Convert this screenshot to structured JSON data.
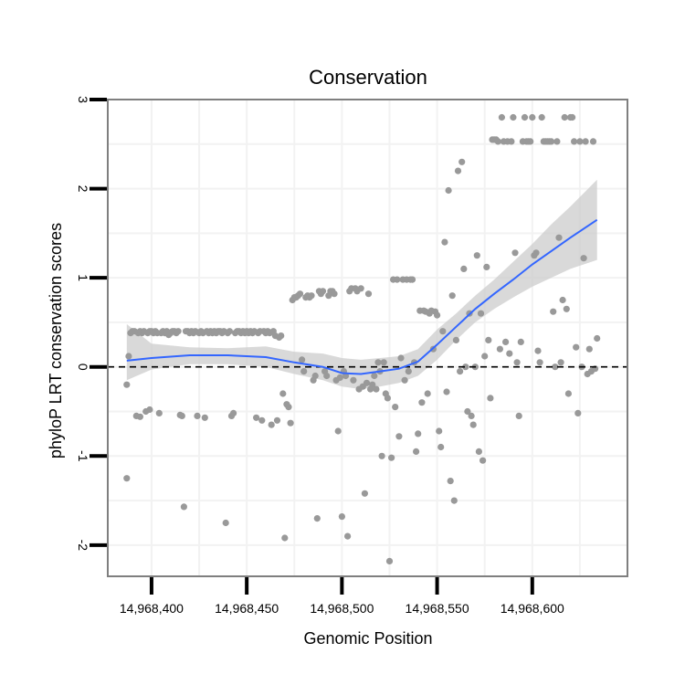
{
  "chart_data": {
    "type": "scatter",
    "title": "Conservation",
    "xlabel": "Genomic Position",
    "ylabel": "phyloP LRT conservation scores",
    "xlim": [
      14968377,
      14968650
    ],
    "ylim": [
      -2.35,
      3.0
    ],
    "x_ticks": [
      14968400,
      14968450,
      14968500,
      14968550,
      14968600
    ],
    "x_tick_labels": [
      "14,968,400",
      "14,968,450",
      "14,968,500",
      "14,968,550",
      "14,968,600"
    ],
    "y_ticks": [
      -2,
      -1,
      0,
      1,
      2,
      3
    ],
    "y_tick_labels": [
      "-2",
      "-1",
      "0",
      "1",
      "2",
      "3"
    ],
    "reference_line": {
      "y": 0,
      "style": "dashed"
    },
    "colors": {
      "points": "#999999",
      "smooth_line": "#3366ff",
      "ribbon": "#cccccc",
      "panel_border": "#7f7f7f",
      "grid": "#f2f2f2"
    },
    "points": [
      [
        14968387,
        -1.25
      ],
      [
        14968387,
        -0.2
      ],
      [
        14968388,
        0.12
      ],
      [
        14968389,
        0.38
      ],
      [
        14968390,
        0.4
      ],
      [
        14968391,
        0.4
      ],
      [
        14968392,
        -0.55
      ],
      [
        14968393,
        0.38
      ],
      [
        14968394,
        0.4
      ],
      [
        14968394,
        -0.56
      ],
      [
        14968395,
        0.38
      ],
      [
        14968396,
        0.4
      ],
      [
        14968397,
        -0.5
      ],
      [
        14968398,
        0.38
      ],
      [
        14968399,
        0.4
      ],
      [
        14968399,
        -0.48
      ],
      [
        14968400,
        0.4
      ],
      [
        14968401,
        0.38
      ],
      [
        14968402,
        0.4
      ],
      [
        14968403,
        0.38
      ],
      [
        14968404,
        -0.52
      ],
      [
        14968405,
        0.38
      ],
      [
        14968406,
        0.4
      ],
      [
        14968407,
        0.38
      ],
      [
        14968408,
        0.4
      ],
      [
        14968409,
        0.36
      ],
      [
        14968410,
        0.38
      ],
      [
        14968411,
        0.4
      ],
      [
        14968412,
        0.4
      ],
      [
        14968413,
        0.38
      ],
      [
        14968414,
        0.4
      ],
      [
        14968415,
        -0.54
      ],
      [
        14968416,
        -0.55
      ],
      [
        14968417,
        -1.57
      ],
      [
        14968418,
        0.4
      ],
      [
        14968419,
        0.4
      ],
      [
        14968420,
        0.38
      ],
      [
        14968421,
        0.4
      ],
      [
        14968422,
        0.38
      ],
      [
        14968423,
        0.4
      ],
      [
        14968424,
        -0.55
      ],
      [
        14968425,
        0.38
      ],
      [
        14968426,
        0.4
      ],
      [
        14968427,
        0.38
      ],
      [
        14968428,
        -0.57
      ],
      [
        14968429,
        0.4
      ],
      [
        14968430,
        0.38
      ],
      [
        14968431,
        0.4
      ],
      [
        14968432,
        0.38
      ],
      [
        14968433,
        0.4
      ],
      [
        14968434,
        0.38
      ],
      [
        14968435,
        0.4
      ],
      [
        14968436,
        0.4
      ],
      [
        14968437,
        0.38
      ],
      [
        14968438,
        0.4
      ],
      [
        14968439,
        -1.75
      ],
      [
        14968440,
        0.38
      ],
      [
        14968441,
        0.4
      ],
      [
        14968442,
        -0.55
      ],
      [
        14968443,
        -0.52
      ],
      [
        14968444,
        0.38
      ],
      [
        14968445,
        0.4
      ],
      [
        14968446,
        0.4
      ],
      [
        14968447,
        0.38
      ],
      [
        14968448,
        0.4
      ],
      [
        14968449,
        0.38
      ],
      [
        14968450,
        0.4
      ],
      [
        14968451,
        0.38
      ],
      [
        14968452,
        0.4
      ],
      [
        14968453,
        0.38
      ],
      [
        14968454,
        0.4
      ],
      [
        14968455,
        -0.57
      ],
      [
        14968456,
        0.38
      ],
      [
        14968457,
        0.4
      ],
      [
        14968458,
        -0.6
      ],
      [
        14968459,
        0.4
      ],
      [
        14968460,
        0.38
      ],
      [
        14968461,
        0.4
      ],
      [
        14968462,
        0.38
      ],
      [
        14968463,
        -0.65
      ],
      [
        14968464,
        0.4
      ],
      [
        14968465,
        0.35
      ],
      [
        14968466,
        -0.6
      ],
      [
        14968467,
        0.33
      ],
      [
        14968468,
        0.35
      ],
      [
        14968469,
        -0.3
      ],
      [
        14968470,
        -1.92
      ],
      [
        14968471,
        -0.42
      ],
      [
        14968472,
        -0.45
      ],
      [
        14968473,
        -0.63
      ],
      [
        14968474,
        0.75
      ],
      [
        14968475,
        0.78
      ],
      [
        14968476,
        0.78
      ],
      [
        14968477,
        0.8
      ],
      [
        14968478,
        0.82
      ],
      [
        14968479,
        0.08
      ],
      [
        14968480,
        -0.05
      ],
      [
        14968481,
        0.78
      ],
      [
        14968482,
        0.8
      ],
      [
        14968483,
        0.78
      ],
      [
        14968484,
        0.8
      ],
      [
        14968485,
        -0.15
      ],
      [
        14968486,
        -0.1
      ],
      [
        14968487,
        -1.7
      ],
      [
        14968488,
        0.85
      ],
      [
        14968489,
        0.82
      ],
      [
        14968490,
        0.85
      ],
      [
        14968491,
        -0.05
      ],
      [
        14968492,
        -0.1
      ],
      [
        14968493,
        0.8
      ],
      [
        14968494,
        0.85
      ],
      [
        14968495,
        0.85
      ],
      [
        14968496,
        0.82
      ],
      [
        14968497,
        -0.15
      ],
      [
        14968498,
        -0.72
      ],
      [
        14968499,
        -0.12
      ],
      [
        14968500,
        -1.68
      ],
      [
        14968501,
        -0.05
      ],
      [
        14968502,
        -0.1
      ],
      [
        14968503,
        -1.9
      ],
      [
        14968504,
        0.85
      ],
      [
        14968505,
        0.88
      ],
      [
        14968506,
        -0.15
      ],
      [
        14968507,
        0.88
      ],
      [
        14968508,
        0.85
      ],
      [
        14968509,
        -0.25
      ],
      [
        14968510,
        0.88
      ],
      [
        14968511,
        -0.22
      ],
      [
        14968512,
        -1.42
      ],
      [
        14968513,
        -0.18
      ],
      [
        14968514,
        0.82
      ],
      [
        14968515,
        -0.25
      ],
      [
        14968516,
        -0.2
      ],
      [
        14968517,
        -0.1
      ],
      [
        14968518,
        -0.25
      ],
      [
        14968519,
        0.05
      ],
      [
        14968520,
        -0.05
      ],
      [
        14968521,
        -1.0
      ],
      [
        14968522,
        0.05
      ],
      [
        14968523,
        -0.3
      ],
      [
        14968524,
        -0.35
      ],
      [
        14968525,
        -2.18
      ],
      [
        14968526,
        -1.02
      ],
      [
        14968527,
        0.98
      ],
      [
        14968528,
        -0.45
      ],
      [
        14968529,
        0.98
      ],
      [
        14968530,
        -0.78
      ],
      [
        14968531,
        0.1
      ],
      [
        14968532,
        0.98
      ],
      [
        14968533,
        -0.15
      ],
      [
        14968534,
        0.98
      ],
      [
        14968535,
        -0.05
      ],
      [
        14968536,
        0.98
      ],
      [
        14968537,
        0.98
      ],
      [
        14968538,
        0.05
      ],
      [
        14968539,
        -0.95
      ],
      [
        14968540,
        -0.75
      ],
      [
        14968541,
        0.63
      ],
      [
        14968542,
        -0.4
      ],
      [
        14968543,
        0.63
      ],
      [
        14968544,
        0.62
      ],
      [
        14968545,
        -0.3
      ],
      [
        14968546,
        0.6
      ],
      [
        14968547,
        0.63
      ],
      [
        14968548,
        0.2
      ],
      [
        14968549,
        0.62
      ],
      [
        14968550,
        0.58
      ],
      [
        14968551,
        -0.72
      ],
      [
        14968552,
        -0.9
      ],
      [
        14968553,
        0.4
      ],
      [
        14968554,
        1.4
      ],
      [
        14968555,
        -0.28
      ],
      [
        14968556,
        1.98
      ],
      [
        14968557,
        -1.28
      ],
      [
        14968558,
        0.8
      ],
      [
        14968559,
        -1.5
      ],
      [
        14968560,
        0.3
      ],
      [
        14968561,
        2.2
      ],
      [
        14968562,
        -0.05
      ],
      [
        14968563,
        2.3
      ],
      [
        14968564,
        1.1
      ],
      [
        14968565,
        0.0
      ],
      [
        14968566,
        -0.5
      ],
      [
        14968567,
        0.6
      ],
      [
        14968568,
        -0.55
      ],
      [
        14968569,
        -0.65
      ],
      [
        14968570,
        0.0
      ],
      [
        14968571,
        1.25
      ],
      [
        14968572,
        -0.95
      ],
      [
        14968573,
        0.6
      ],
      [
        14968574,
        -1.05
      ],
      [
        14968575,
        0.12
      ],
      [
        14968576,
        1.12
      ],
      [
        14968577,
        0.3
      ],
      [
        14968578,
        -0.35
      ],
      [
        14968579,
        2.55
      ],
      [
        14968580,
        2.55
      ],
      [
        14968581,
        2.55
      ],
      [
        14968582,
        2.53
      ],
      [
        14968583,
        0.2
      ],
      [
        14968584,
        2.8
      ],
      [
        14968585,
        2.53
      ],
      [
        14968586,
        0.28
      ],
      [
        14968587,
        2.53
      ],
      [
        14968588,
        0.15
      ],
      [
        14968589,
        2.53
      ],
      [
        14968590,
        2.8
      ],
      [
        14968591,
        1.28
      ],
      [
        14968592,
        0.05
      ],
      [
        14968593,
        -0.55
      ],
      [
        14968594,
        0.28
      ],
      [
        14968595,
        2.53
      ],
      [
        14968596,
        2.8
      ],
      [
        14968597,
        2.53
      ],
      [
        14968598,
        2.53
      ],
      [
        14968599,
        2.53
      ],
      [
        14968600,
        2.8
      ],
      [
        14968601,
        1.25
      ],
      [
        14968602,
        1.28
      ],
      [
        14968603,
        0.18
      ],
      [
        14968604,
        0.05
      ],
      [
        14968605,
        2.8
      ],
      [
        14968606,
        2.53
      ],
      [
        14968607,
        2.53
      ],
      [
        14968608,
        2.53
      ],
      [
        14968609,
        2.53
      ],
      [
        14968610,
        2.53
      ],
      [
        14968611,
        0.62
      ],
      [
        14968612,
        0.0
      ],
      [
        14968613,
        2.53
      ],
      [
        14968614,
        1.45
      ],
      [
        14968615,
        0.05
      ],
      [
        14968616,
        0.75
      ],
      [
        14968617,
        2.8
      ],
      [
        14968618,
        0.65
      ],
      [
        14968619,
        -0.3
      ],
      [
        14968620,
        2.8
      ],
      [
        14968621,
        2.8
      ],
      [
        14968622,
        2.53
      ],
      [
        14968623,
        0.22
      ],
      [
        14968624,
        -0.52
      ],
      [
        14968625,
        2.53
      ],
      [
        14968626,
        0.0
      ],
      [
        14968627,
        1.22
      ],
      [
        14968628,
        2.53
      ],
      [
        14968629,
        -0.08
      ],
      [
        14968630,
        0.2
      ],
      [
        14968631,
        -0.05
      ],
      [
        14968632,
        2.53
      ],
      [
        14968633,
        -0.02
      ],
      [
        14968634,
        0.32
      ]
    ],
    "smooth": {
      "x": [
        14968387,
        14968400,
        14968420,
        14968440,
        14968460,
        14968475,
        14968490,
        14968500,
        14968510,
        14968520,
        14968530,
        14968540,
        14968550,
        14968560,
        14968570,
        14968580,
        14968590,
        14968600,
        14968610,
        14968620,
        14968634
      ],
      "y": [
        0.07,
        0.1,
        0.13,
        0.13,
        0.11,
        0.05,
        0.0,
        -0.07,
        -0.08,
        -0.05,
        -0.02,
        0.06,
        0.25,
        0.45,
        0.65,
        0.82,
        0.98,
        1.15,
        1.3,
        1.45,
        1.65
      ],
      "lower": [
        -0.15,
        -0.03,
        0.03,
        0.03,
        0.0,
        -0.08,
        -0.15,
        -0.22,
        -0.25,
        -0.22,
        -0.18,
        -0.1,
        0.08,
        0.3,
        0.5,
        0.65,
        0.78,
        0.9,
        1.0,
        1.1,
        1.2
      ],
      "upper": [
        0.48,
        0.26,
        0.22,
        0.21,
        0.23,
        0.17,
        0.15,
        0.1,
        0.08,
        0.1,
        0.12,
        0.2,
        0.42,
        0.6,
        0.8,
        0.98,
        1.18,
        1.38,
        1.6,
        1.8,
        2.1
      ]
    }
  }
}
